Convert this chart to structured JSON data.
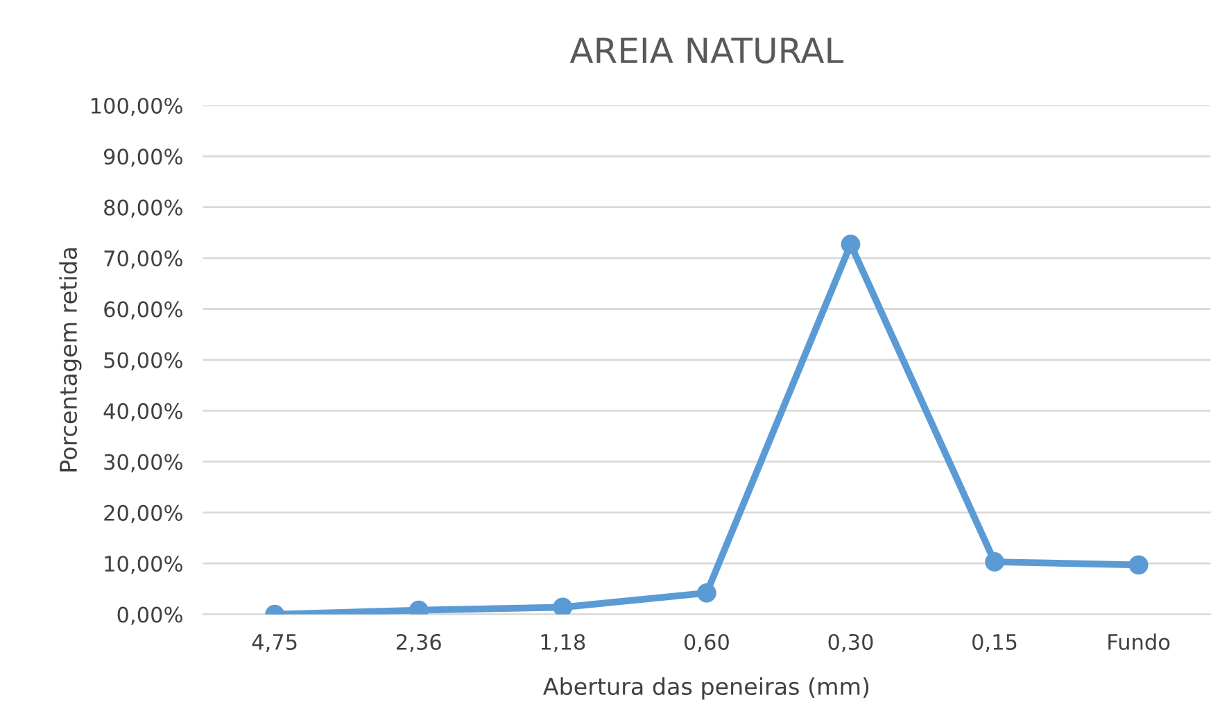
{
  "chart_data": {
    "type": "line",
    "title": "AREIA NATURAL",
    "xlabel": "Abertura das peneiras (mm)",
    "ylabel": "Porcentagem retida",
    "categories": [
      "4,75",
      "2,36",
      "1,18",
      "0,60",
      "0,30",
      "0,15",
      "Fundo"
    ],
    "series": [
      {
        "color": "#5b9bd5",
        "values": [
          0.0,
          0.8,
          1.4,
          4.2,
          72.7,
          10.3,
          9.7
        ]
      }
    ],
    "ylim": [
      0,
      100
    ],
    "yticks": [
      {
        "value": 0,
        "label": "0,00%"
      },
      {
        "value": 10,
        "label": "10,00%"
      },
      {
        "value": 20,
        "label": "20,00%"
      },
      {
        "value": 30,
        "label": "30,00%"
      },
      {
        "value": 40,
        "label": "40,00%"
      },
      {
        "value": 50,
        "label": "50,00%"
      },
      {
        "value": 60,
        "label": "60,00%"
      },
      {
        "value": 70,
        "label": "70,00%"
      },
      {
        "value": 80,
        "label": "80,00%"
      },
      {
        "value": 90,
        "label": "90,00%"
      },
      {
        "value": 100,
        "label": "100,00%"
      }
    ],
    "grid": "y",
    "marker": "circle",
    "line_style": "solid",
    "legend": false
  }
}
